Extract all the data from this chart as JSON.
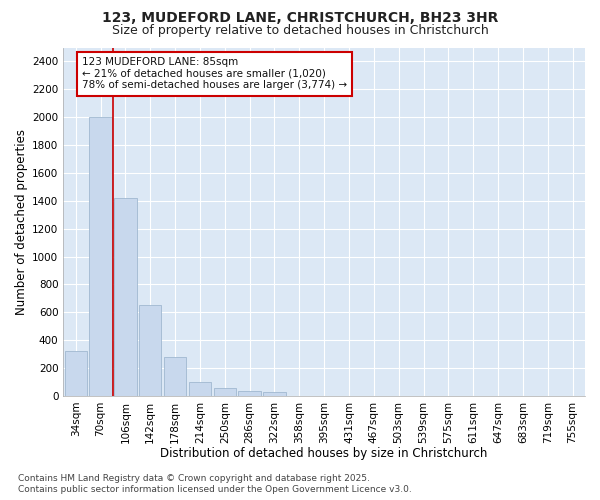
{
  "title_line1": "123, MUDEFORD LANE, CHRISTCHURCH, BH23 3HR",
  "title_line2": "Size of property relative to detached houses in Christchurch",
  "xlabel": "Distribution of detached houses by size in Christchurch",
  "ylabel": "Number of detached properties",
  "categories": [
    "34sqm",
    "70sqm",
    "106sqm",
    "142sqm",
    "178sqm",
    "214sqm",
    "250sqm",
    "286sqm",
    "322sqm",
    "358sqm",
    "395sqm",
    "431sqm",
    "467sqm",
    "503sqm",
    "539sqm",
    "575sqm",
    "611sqm",
    "647sqm",
    "683sqm",
    "719sqm",
    "755sqm"
  ],
  "values": [
    320,
    2000,
    1420,
    650,
    280,
    100,
    55,
    35,
    25,
    0,
    0,
    0,
    0,
    0,
    0,
    0,
    0,
    0,
    0,
    0,
    0
  ],
  "bar_color": "#c8d8ed",
  "bar_edge_color": "#a0b8d0",
  "vline_x": 1.5,
  "vline_color": "#cc0000",
  "annotation_text": "123 MUDEFORD LANE: 85sqm\n← 21% of detached houses are smaller (1,020)\n78% of semi-detached houses are larger (3,774) →",
  "annotation_box_facecolor": "#ffffff",
  "annotation_box_edgecolor": "#cc0000",
  "ylim": [
    0,
    2500
  ],
  "yticks": [
    0,
    200,
    400,
    600,
    800,
    1000,
    1200,
    1400,
    1600,
    1800,
    2000,
    2200,
    2400
  ],
  "footer_text": "Contains HM Land Registry data © Crown copyright and database right 2025.\nContains public sector information licensed under the Open Government Licence v3.0.",
  "fig_bg_color": "#ffffff",
  "plot_bg_color": "#dce8f5",
  "grid_color": "#ffffff",
  "title_fontsize": 10,
  "subtitle_fontsize": 9,
  "axis_label_fontsize": 8.5,
  "tick_fontsize": 7.5,
  "annotation_fontsize": 7.5,
  "footer_fontsize": 6.5
}
